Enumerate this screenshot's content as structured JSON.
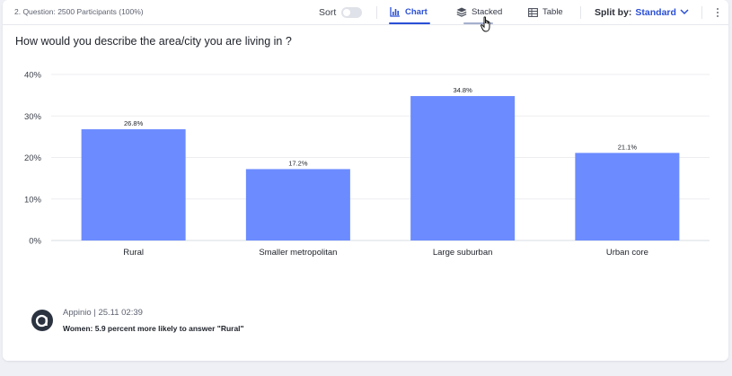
{
  "toolbar": {
    "question_label": "2. Question: 2500 Participants (100%)",
    "sort_label": "Sort",
    "tabs": [
      {
        "label": "Chart",
        "icon": "bar-chart-icon"
      },
      {
        "label": "Stacked",
        "icon": "layers-icon"
      },
      {
        "label": "Table",
        "icon": "table-icon"
      }
    ],
    "active_tab": "Chart",
    "split_label": "Split by:",
    "split_value": "Standard"
  },
  "question": "How would you describe the area/city you are living in ?",
  "chart_data": {
    "type": "bar",
    "categories": [
      "Rural",
      "Smaller metropolitan",
      "Large suburban",
      "Urban core"
    ],
    "values": [
      26.8,
      17.2,
      34.8,
      21.1
    ],
    "value_labels": [
      "26.8%",
      "17.2%",
      "34.8%",
      "21.1%"
    ],
    "yticks": [
      "0%",
      "10%",
      "20%",
      "30%",
      "40%"
    ],
    "ylim": [
      0,
      40
    ],
    "grid": true,
    "bar_color": "#6b8bff"
  },
  "insight": {
    "meta": "Appinio | 25.11 02:39",
    "text": "Women: 5.9 percent more likely to answer \"Rural\""
  },
  "colors": {
    "accent": "#2a4fd6",
    "bar": "#6b8bff",
    "background": "#eef0f6"
  }
}
